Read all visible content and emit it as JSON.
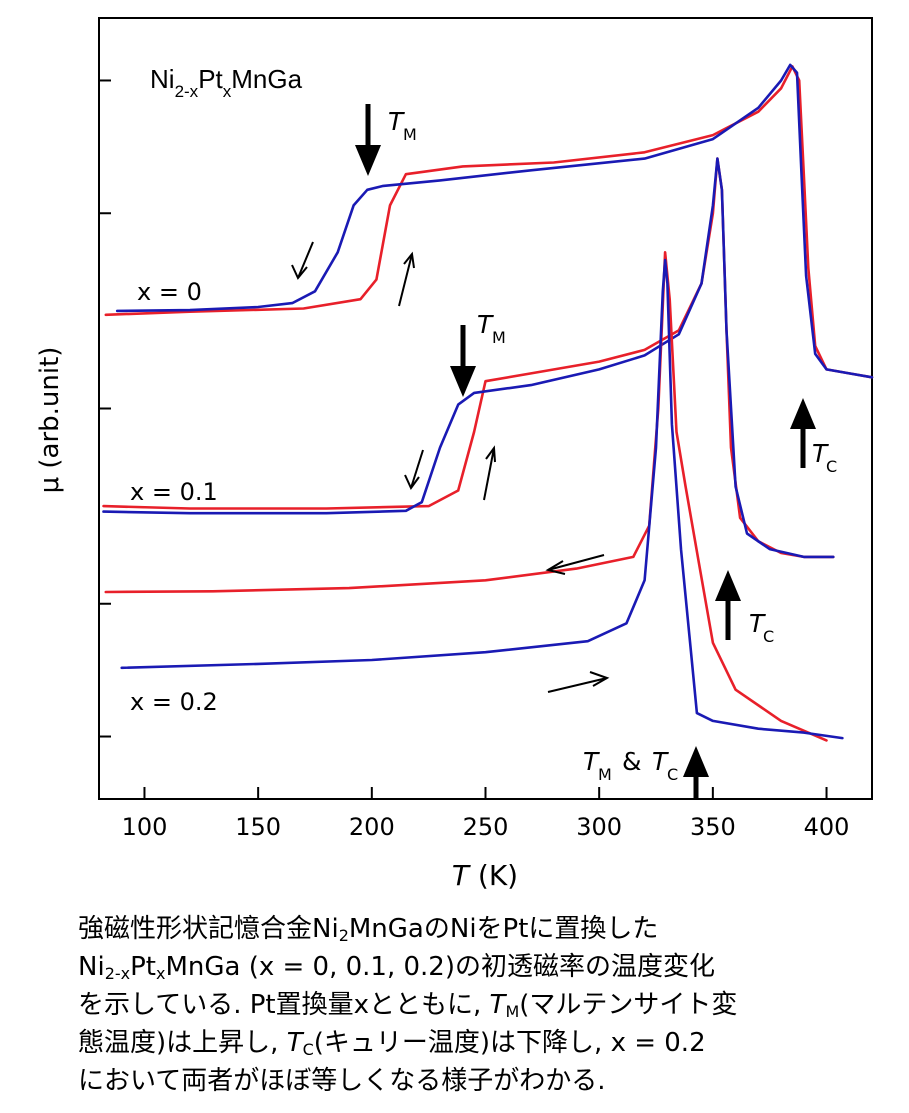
{
  "chart_data": {
    "type": "line",
    "title": "Ni2-xPtxMnGa",
    "title_parts": {
      "base": "Ni",
      "sub1": "2-x",
      "mid": "Pt",
      "sub2": "x",
      "rest": "MnGa"
    },
    "xlabel": {
      "italic": "T",
      "rest": " (K)"
    },
    "ylabel": "μ (arb.unit)",
    "xlim": [
      80,
      420
    ],
    "ylim": [
      0,
      100
    ],
    "xticks": [
      100,
      150,
      200,
      250,
      300,
      350,
      400
    ],
    "yticks": [
      8,
      25,
      50,
      75,
      92
    ],
    "grid": false,
    "legend": "none",
    "colors": {
      "heating": "#e8202a",
      "cooling": "#1a1ab4",
      "annotation": "#000000"
    },
    "series": [
      {
        "group": "x = 0",
        "direction": "heating",
        "color": "#e8202a",
        "x": [
          83,
          120,
          170,
          195,
          202,
          208,
          215,
          240,
          280,
          320,
          350,
          370,
          380,
          385,
          388,
          390,
          392,
          395,
          400,
          410,
          420
        ],
        "y": [
          62,
          62.4,
          62.8,
          64,
          66.5,
          76,
          80,
          81,
          81.5,
          82.8,
          85,
          88,
          91,
          93.8,
          92,
          80,
          68,
          58,
          55,
          54.5,
          54
        ]
      },
      {
        "group": "x = 0",
        "direction": "cooling",
        "color": "#1a1ab4",
        "x": [
          88,
          120,
          150,
          165,
          175,
          185,
          192,
          198,
          205,
          230,
          270,
          320,
          350,
          370,
          380,
          384,
          387,
          389,
          391,
          395,
          400,
          410,
          420
        ],
        "y": [
          62.5,
          62.6,
          63,
          63.5,
          65,
          70,
          76,
          78,
          78.5,
          79.2,
          80.5,
          82,
          84.5,
          88.5,
          92,
          94,
          93,
          80,
          67,
          57,
          55,
          54.5,
          54
        ]
      },
      {
        "group": "x = 0.1",
        "direction": "heating",
        "color": "#e8202a",
        "x": [
          82,
          120,
          180,
          225,
          238,
          245,
          250,
          270,
          300,
          320,
          335,
          345,
          350,
          352,
          354,
          356,
          358,
          362,
          370,
          380,
          390,
          403
        ],
        "y": [
          37.5,
          37.2,
          37.2,
          37.5,
          39.5,
          47,
          53.5,
          54.5,
          56,
          57.5,
          60,
          66,
          75,
          82,
          78,
          60,
          45,
          36,
          33,
          31.5,
          31,
          31
        ]
      },
      {
        "group": "x = 0.1",
        "direction": "cooling",
        "color": "#1a1ab4",
        "x": [
          82,
          120,
          180,
          215,
          222,
          230,
          238,
          245,
          270,
          300,
          320,
          335,
          345,
          350,
          352,
          354,
          356,
          360,
          365,
          375,
          390,
          403
        ],
        "y": [
          36.8,
          36.6,
          36.6,
          36.9,
          38,
          45,
          50.5,
          52,
          53,
          55,
          56.8,
          59.5,
          66,
          76,
          82,
          78,
          60,
          40,
          34,
          32,
          31,
          31
        ]
      },
      {
        "group": "x = 0.2",
        "direction": "heating",
        "color": "#e8202a",
        "x": [
          83,
          130,
          190,
          250,
          290,
          315,
          322,
          326,
          329,
          331,
          334,
          338,
          344,
          350,
          360,
          380,
          400
        ],
        "y": [
          26.5,
          26.6,
          27,
          28,
          29.5,
          31,
          35,
          50,
          70,
          64,
          47,
          40,
          30,
          20,
          14,
          10,
          7.5
        ]
      },
      {
        "group": "x = 0.2",
        "direction": "cooling",
        "color": "#1a1ab4",
        "x": [
          90,
          150,
          200,
          250,
          295,
          312,
          320,
          325,
          328,
          329,
          330,
          332,
          336,
          340,
          343,
          350,
          370,
          390,
          407
        ],
        "y": [
          16.8,
          17.3,
          17.8,
          18.8,
          20.2,
          22.5,
          28,
          45,
          65,
          69,
          66,
          48,
          32,
          20,
          11,
          10,
          9,
          8.5,
          7.8
        ]
      }
    ],
    "annotations": {
      "group_labels": [
        "x = 0",
        "x = 0.1",
        "x = 0.2"
      ],
      "tm_label": "T",
      "tm_sub": "M",
      "tc_label": "T",
      "tc_sub": "C",
      "amp": "&"
    }
  },
  "caption": {
    "line1": {
      "pre": "強磁性形状記憶合金Ni",
      "sub": "2",
      "post": "MnGaのNiをPtに置換した"
    },
    "line2": {
      "base": "Ni",
      "sub1": "2-x",
      "mid": "Pt",
      "sub2": "x",
      "post": "MnGa (x = 0, 0.1, 0.2)の初透磁率の温度変化"
    },
    "line3": {
      "pre": "を示している. Pt置換量xとともに, ",
      "t": "T",
      "sub": "M",
      "post": "(マルテンサイト変"
    },
    "line4": {
      "pre": "態温度)は上昇し, ",
      "t": "T",
      "sub": "C",
      "post": "(キュリー温度)は下降し, x = 0.2"
    },
    "line5": "において両者がほぼ等しくなる様子がわかる."
  }
}
